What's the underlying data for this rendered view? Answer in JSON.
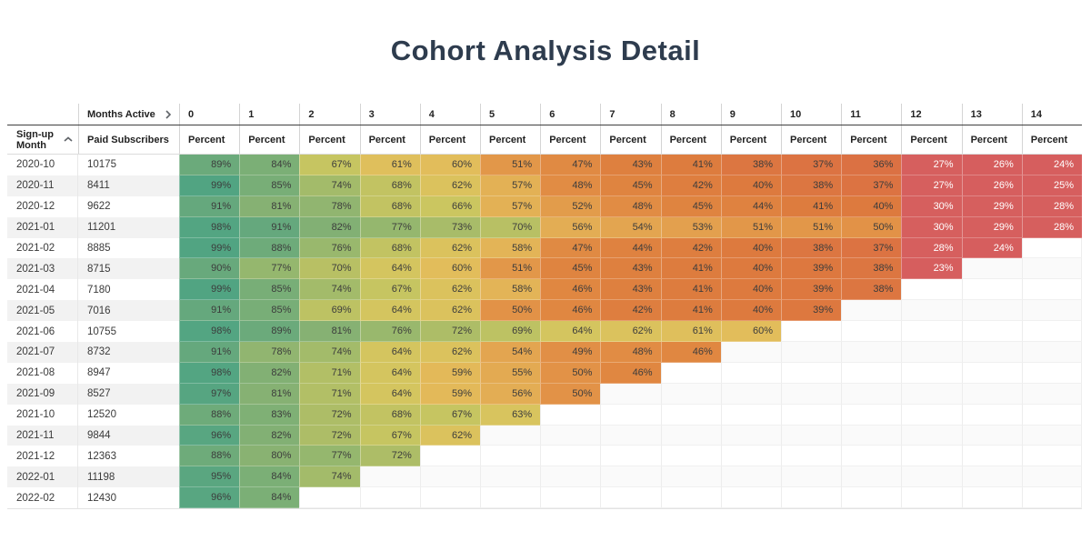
{
  "title": "Cohort Analysis Detail",
  "header": {
    "column_dimension": "Months Active",
    "row_dimension": "Sign-up Month",
    "row_metric": "Paid Subscribers",
    "cell_metric": "Percent"
  },
  "icons": {
    "months_active_chevron": "chevron-right",
    "signup_sort": "chevron-up"
  },
  "colors": {
    "title": "#2e3c4e",
    "cell_text_dark": "#3c3c3c",
    "cell_text_light": "#ffffff",
    "white_text_max": 30,
    "heatmap_scale": [
      {
        "v": 23,
        "c": "#d65e5e"
      },
      {
        "v": 30,
        "c": "#d65f5e"
      },
      {
        "v": 33,
        "c": "#d8664e"
      },
      {
        "v": 36,
        "c": "#db7143"
      },
      {
        "v": 40,
        "c": "#dd7a3e"
      },
      {
        "v": 45,
        "c": "#df8440"
      },
      {
        "v": 50,
        "c": "#e29247"
      },
      {
        "v": 55,
        "c": "#e3aa52"
      },
      {
        "v": 58,
        "c": "#e3b457"
      },
      {
        "v": 60,
        "c": "#e2bd5b"
      },
      {
        "v": 63,
        "c": "#d8c45e"
      },
      {
        "v": 66,
        "c": "#cbc660"
      },
      {
        "v": 69,
        "c": "#bdc263"
      },
      {
        "v": 72,
        "c": "#adbd67"
      },
      {
        "v": 76,
        "c": "#99b86d"
      },
      {
        "v": 80,
        "c": "#89b272"
      },
      {
        "v": 85,
        "c": "#78ae77"
      },
      {
        "v": 90,
        "c": "#68a97c"
      },
      {
        "v": 95,
        "c": "#5aa680"
      },
      {
        "v": 100,
        "c": "#4fa483"
      }
    ]
  },
  "chart_data": {
    "type": "heatmap",
    "title": "Cohort Analysis Detail",
    "columns": [
      "0",
      "1",
      "2",
      "3",
      "4",
      "5",
      "6",
      "7",
      "8",
      "9",
      "10",
      "11",
      "12",
      "13",
      "14"
    ],
    "value_unit": "%",
    "rows": [
      {
        "month": "2020-10",
        "subscribers": "10175",
        "percents": [
          89,
          84,
          67,
          61,
          60,
          51,
          47,
          43,
          41,
          38,
          37,
          36,
          27,
          26,
          24
        ]
      },
      {
        "month": "2020-11",
        "subscribers": "8411",
        "percents": [
          99,
          85,
          74,
          68,
          62,
          57,
          48,
          45,
          42,
          40,
          38,
          37,
          27,
          26,
          25
        ]
      },
      {
        "month": "2020-12",
        "subscribers": "9622",
        "percents": [
          91,
          81,
          78,
          68,
          66,
          57,
          52,
          48,
          45,
          44,
          41,
          40,
          30,
          29,
          28
        ]
      },
      {
        "month": "2021-01",
        "subscribers": "11201",
        "percents": [
          98,
          91,
          82,
          77,
          73,
          70,
          56,
          54,
          53,
          51,
          51,
          50,
          30,
          29,
          28
        ]
      },
      {
        "month": "2021-02",
        "subscribers": "8885",
        "percents": [
          99,
          88,
          76,
          68,
          62,
          58,
          47,
          44,
          42,
          40,
          38,
          37,
          28,
          24
        ]
      },
      {
        "month": "2021-03",
        "subscribers": "8715",
        "percents": [
          90,
          77,
          70,
          64,
          60,
          51,
          45,
          43,
          41,
          40,
          39,
          38,
          23
        ]
      },
      {
        "month": "2021-04",
        "subscribers": "7180",
        "percents": [
          99,
          85,
          74,
          67,
          62,
          58,
          46,
          43,
          41,
          40,
          39,
          38
        ]
      },
      {
        "month": "2021-05",
        "subscribers": "7016",
        "percents": [
          91,
          85,
          69,
          64,
          62,
          50,
          46,
          42,
          41,
          40,
          39
        ]
      },
      {
        "month": "2021-06",
        "subscribers": "10755",
        "percents": [
          98,
          89,
          81,
          76,
          72,
          69,
          64,
          62,
          61,
          60
        ]
      },
      {
        "month": "2021-07",
        "subscribers": "8732",
        "percents": [
          91,
          78,
          74,
          64,
          62,
          54,
          49,
          48,
          46
        ]
      },
      {
        "month": "2021-08",
        "subscribers": "8947",
        "percents": [
          98,
          82,
          71,
          64,
          59,
          55,
          50,
          46
        ]
      },
      {
        "month": "2021-09",
        "subscribers": "8527",
        "percents": [
          97,
          81,
          71,
          64,
          59,
          56,
          50
        ]
      },
      {
        "month": "2021-10",
        "subscribers": "12520",
        "percents": [
          88,
          83,
          72,
          68,
          67,
          63
        ]
      },
      {
        "month": "2021-11",
        "subscribers": "9844",
        "percents": [
          96,
          82,
          72,
          67,
          62
        ]
      },
      {
        "month": "2021-12",
        "subscribers": "12363",
        "percents": [
          88,
          80,
          77,
          72
        ]
      },
      {
        "month": "2022-01",
        "subscribers": "11198",
        "percents": [
          95,
          84,
          74
        ]
      },
      {
        "month": "2022-02",
        "subscribers": "12430",
        "percents": [
          96,
          84
        ]
      }
    ]
  }
}
